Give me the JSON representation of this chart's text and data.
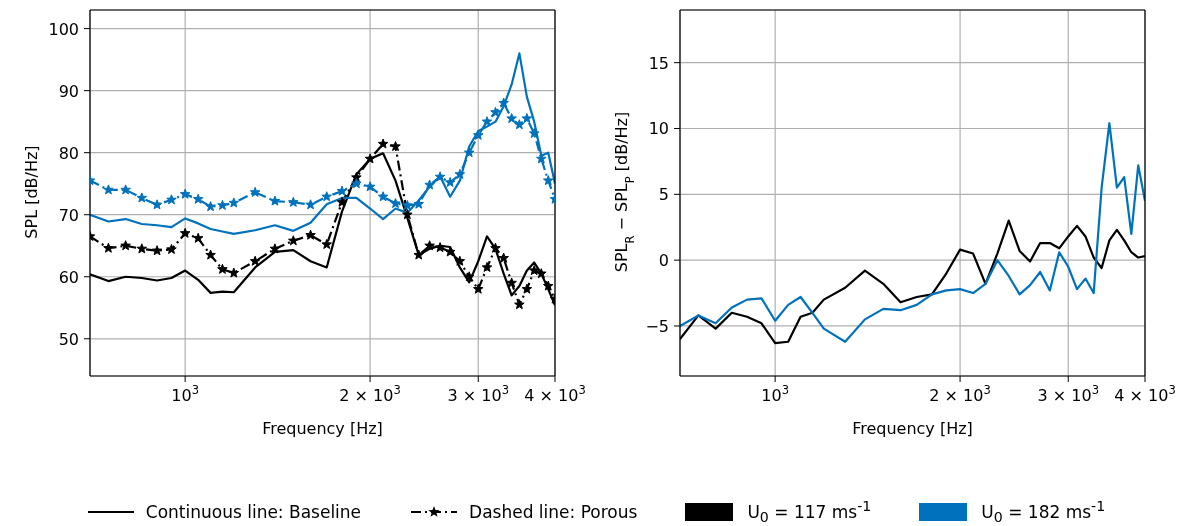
{
  "chart_data": [
    {
      "type": "line",
      "xlabel": "Frequency [Hz]",
      "ylabel": "SPL [dB/Hz]",
      "log": "x",
      "grid": true,
      "xlim": [
        700,
        4000
      ],
      "ylim": [
        44,
        103
      ],
      "xticks": [
        {
          "value": 1000,
          "label": "10$^{3}$"
        },
        {
          "value": 2000,
          "label": "2 × 10$^{3}$"
        },
        {
          "value": 3000,
          "label": "3 × 10$^{3}$"
        },
        {
          "value": 4000,
          "label": "4 × 10$^{3}$"
        }
      ],
      "yticks": [
        50,
        60,
        70,
        80,
        90,
        100
      ],
      "x": [
        700,
        750,
        800,
        850,
        900,
        950,
        1000,
        1050,
        1100,
        1150,
        1200,
        1300,
        1400,
        1500,
        1600,
        1700,
        1800,
        1900,
        2000,
        2100,
        2200,
        2300,
        2400,
        2500,
        2600,
        2700,
        2800,
        2900,
        3000,
        3100,
        3200,
        3300,
        3400,
        3500,
        3600,
        3700,
        3800,
        3900,
        4000
      ],
      "annotations": [
        "Continuous line: Baseline",
        "Dashed line: Porous"
      ],
      "series": [
        {
          "color": "#000000",
          "line_style": "solid",
          "marker": "none",
          "values": [
            60.4,
            59.3,
            60.0,
            59.8,
            59.4,
            59.8,
            61.0,
            59.5,
            57.4,
            57.6,
            57.5,
            61.5,
            64.0,
            64.3,
            62.5,
            61.5,
            70.5,
            76.5,
            79.0,
            79.9,
            75.5,
            69.5,
            63.5,
            64.5,
            65.0,
            64.8,
            61.5,
            59.1,
            62.5,
            66.5,
            64.5,
            60.5,
            57.0,
            58.5,
            61.0,
            62.3,
            60.5,
            58.0,
            55.4
          ]
        },
        {
          "color": "#000000",
          "line_style": "dashed",
          "marker": "star",
          "values": [
            66.5,
            64.6,
            65.0,
            64.5,
            64.2,
            64.4,
            67.0,
            66.2,
            63.5,
            61.2,
            60.6,
            62.5,
            64.5,
            65.8,
            66.7,
            65.2,
            72.0,
            76.0,
            79.0,
            81.4,
            81.0,
            70.0,
            63.5,
            65.0,
            64.7,
            64.0,
            62.5,
            60.0,
            58.0,
            61.5,
            64.6,
            63.0,
            59.0,
            55.5,
            58.0,
            61.0,
            60.5,
            58.5,
            56.4
          ]
        },
        {
          "color": "#0072bd",
          "line_style": "solid",
          "marker": "none",
          "values": [
            70.0,
            68.9,
            69.3,
            68.5,
            68.3,
            68.0,
            69.4,
            68.6,
            67.7,
            67.3,
            66.9,
            67.5,
            68.3,
            67.4,
            68.7,
            71.7,
            72.7,
            72.7,
            71.0,
            69.3,
            71.0,
            70.3,
            72.3,
            74.5,
            76.2,
            72.9,
            75.5,
            81.0,
            83.5,
            84.2,
            85.0,
            87.5,
            91.0,
            96.0,
            89.0,
            85.0,
            79.5,
            80.0,
            75.0
          ]
        },
        {
          "color": "#0072bd",
          "line_style": "dashed",
          "marker": "star",
          "values": [
            75.5,
            74.0,
            74.0,
            72.7,
            71.6,
            72.4,
            73.3,
            72.5,
            71.3,
            71.5,
            71.9,
            73.6,
            72.2,
            72.0,
            71.6,
            72.9,
            73.8,
            75.0,
            74.5,
            72.9,
            71.8,
            71.5,
            71.7,
            74.8,
            76.1,
            75.2,
            76.5,
            80.0,
            82.8,
            85.0,
            86.5,
            88.0,
            85.5,
            84.5,
            85.5,
            83.1,
            79.0,
            75.5,
            72.5
          ]
        }
      ]
    },
    {
      "type": "line",
      "xlabel": "Frequency [Hz]",
      "ylabel": "SPL$_{R}$ − SPL$_{P}$ [dB/Hz]",
      "log": "x",
      "grid": true,
      "legend": "bottom",
      "xlim": [
        700,
        4000
      ],
      "ylim": [
        -8.8,
        19
      ],
      "xticks": [
        {
          "value": 1000,
          "label": "10$^{3}$"
        },
        {
          "value": 2000,
          "label": "2 × 10$^{3}$"
        },
        {
          "value": 3000,
          "label": "3 × 10$^{3}$"
        },
        {
          "value": 4000,
          "label": "4 × 10$^{3}$"
        }
      ],
      "yticks": [
        {
          "value": -5,
          "label": "−5"
        },
        0,
        5,
        10,
        15
      ],
      "x": [
        700,
        750,
        800,
        850,
        900,
        950,
        1000,
        1050,
        1100,
        1150,
        1200,
        1300,
        1400,
        1500,
        1600,
        1700,
        1800,
        1900,
        2000,
        2100,
        2200,
        2300,
        2400,
        2500,
        2600,
        2700,
        2800,
        2900,
        3000,
        3100,
        3200,
        3300,
        3400,
        3500,
        3600,
        3700,
        3800,
        3900,
        4000
      ],
      "series": [
        {
          "name": "U$_{0}$ =  117 ms$^{-1}$",
          "color": "#000000",
          "values": [
            -6.0,
            -4.2,
            -5.2,
            -4.0,
            -4.3,
            -4.8,
            -6.3,
            -6.2,
            -4.3,
            -4.0,
            -3.0,
            -2.1,
            -0.8,
            -1.8,
            -3.2,
            -2.8,
            -2.6,
            -1.0,
            0.8,
            0.5,
            -1.8,
            0.5,
            3.0,
            0.7,
            -0.1,
            1.3,
            1.3,
            0.9,
            1.8,
            2.6,
            1.8,
            0.2,
            -0.6,
            1.5,
            2.3,
            1.5,
            0.6,
            0.2,
            0.3
          ]
        },
        {
          "name": "U$_{0}$ =  182 ms$^{-1}$",
          "color": "#0072bd",
          "values": [
            -5.0,
            -4.2,
            -4.8,
            -3.6,
            -3.0,
            -2.9,
            -4.6,
            -3.4,
            -2.8,
            -4.0,
            -5.2,
            -6.2,
            -4.5,
            -3.7,
            -3.8,
            -3.4,
            -2.6,
            -2.3,
            -2.2,
            -2.5,
            -1.8,
            0.0,
            -1.2,
            -2.6,
            -1.9,
            -0.9,
            -2.3,
            0.6,
            -0.5,
            -2.2,
            -1.4,
            -2.5,
            5.5,
            10.4,
            5.5,
            6.3,
            2.0,
            7.2,
            4.5
          ]
        }
      ]
    }
  ]
}
